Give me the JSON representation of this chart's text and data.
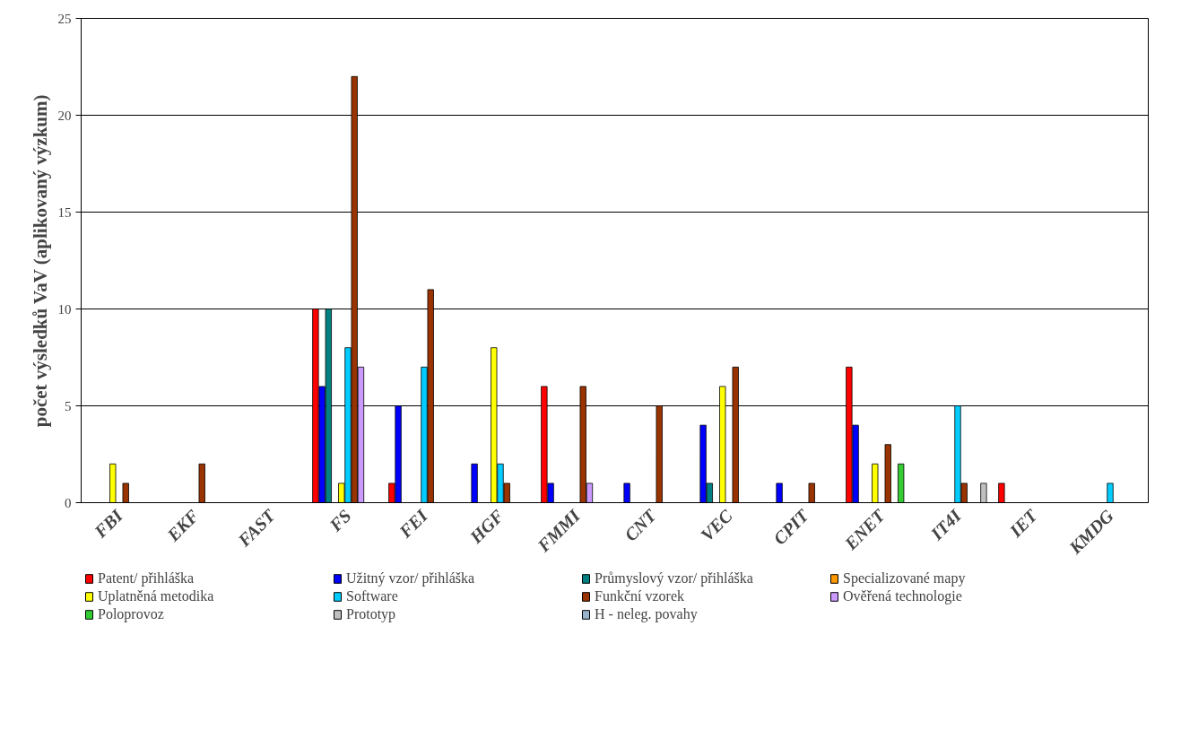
{
  "chart_data": {
    "type": "bar",
    "ylabel": "počet výsledků VaV (aplikovaný výzkum)",
    "categories": [
      "FBI",
      "EKF",
      "FAST",
      "FS",
      "FEI",
      "HGF",
      "FMMI",
      "CNT",
      "VEC",
      "CPIT",
      "ENET",
      "IT4I",
      "IET",
      "KMDG"
    ],
    "series": [
      {
        "name": "Patent/ přihláška",
        "color": "#ff0000",
        "values": [
          0,
          0,
          0,
          10,
          1,
          0,
          6,
          0,
          0,
          0,
          7,
          0,
          1,
          0
        ]
      },
      {
        "name": "Užitný vzor/ přihláška",
        "color": "#0000ff",
        "values": [
          0,
          0,
          0,
          6,
          5,
          2,
          1,
          1,
          4,
          1,
          4,
          0,
          0,
          0
        ]
      },
      {
        "name": "Průmyslový vzor/ přihláška",
        "color": "#008080",
        "values": [
          0,
          0,
          0,
          10,
          0,
          0,
          0,
          0,
          1,
          0,
          0,
          0,
          0,
          0
        ]
      },
      {
        "name": "Specializované mapy",
        "color": "#ff9900",
        "values": [
          0,
          0,
          0,
          0,
          0,
          0,
          0,
          0,
          0,
          0,
          0,
          0,
          0,
          0
        ]
      },
      {
        "name": "Uplatněná metodika",
        "color": "#ffff00",
        "values": [
          2,
          0,
          0,
          1,
          0,
          8,
          0,
          0,
          6,
          0,
          2,
          0,
          0,
          0
        ]
      },
      {
        "name": "Software",
        "color": "#00ccff",
        "values": [
          0,
          0,
          0,
          8,
          7,
          2,
          0,
          0,
          0,
          0,
          0,
          5,
          0,
          1
        ]
      },
      {
        "name": "Funkční vzorek",
        "color": "#993300",
        "values": [
          1,
          2,
          0,
          22,
          11,
          1,
          6,
          5,
          7,
          1,
          3,
          1,
          0,
          0
        ]
      },
      {
        "name": "Ověřená technologie",
        "color": "#cc99ff",
        "values": [
          0,
          0,
          0,
          7,
          0,
          0,
          1,
          0,
          0,
          0,
          0,
          0,
          0,
          0
        ]
      },
      {
        "name": "Poloprovoz",
        "color": "#33cc33",
        "values": [
          0,
          0,
          0,
          0,
          0,
          0,
          0,
          0,
          0,
          0,
          2,
          0,
          0,
          0
        ]
      },
      {
        "name": "Prototyp",
        "color": "#c0c0c0",
        "values": [
          0,
          0,
          0,
          0,
          0,
          0,
          0,
          0,
          0,
          0,
          0,
          1,
          0,
          0
        ]
      },
      {
        "name": "H - neleg. povahy",
        "color": "#99b3cc",
        "values": [
          0,
          0,
          0,
          0,
          0,
          0,
          0,
          0,
          0,
          0,
          0,
          0,
          0,
          0
        ]
      }
    ],
    "ylim": [
      0,
      25
    ],
    "yticks": [
      0,
      5,
      10,
      15,
      20,
      25
    ],
    "grid": "y",
    "legend": "bottom"
  }
}
